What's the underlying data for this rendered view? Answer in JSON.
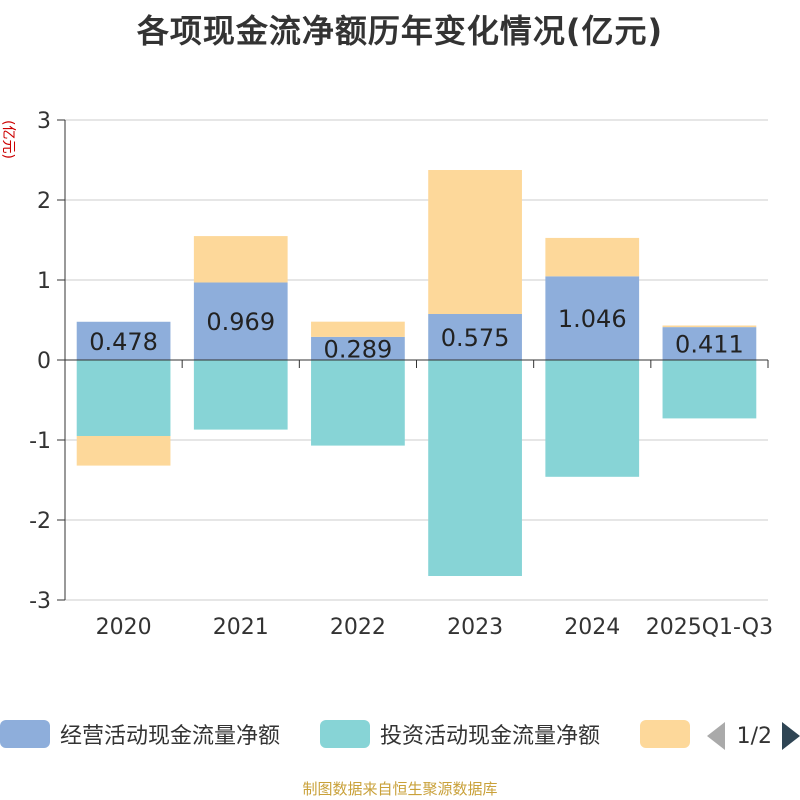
{
  "chart_data": {
    "type": "bar",
    "stacked": true,
    "title": "各项现金流净额历年变化情况(亿元)",
    "ylabel": "(亿元)",
    "xlabel": "",
    "categories": [
      "2020",
      "2021",
      "2022",
      "2023",
      "2024",
      "2025Q1-Q3"
    ],
    "ylim": [
      -3,
      3
    ],
    "yticks": [
      3,
      2,
      1,
      0,
      -1,
      -2,
      -3
    ],
    "grid": true,
    "series": [
      {
        "name": "经营活动现金流量净额",
        "color": "#8eaedb",
        "values": [
          0.478,
          0.969,
          0.289,
          0.575,
          1.046,
          0.411
        ],
        "labels": [
          "0.478",
          "0.969",
          "0.289",
          "0.575",
          "1.046",
          "0.411"
        ]
      },
      {
        "name": "投资活动现金流量净额",
        "color": "#87d4d6",
        "values": [
          -0.95,
          -0.87,
          -1.07,
          -2.7,
          -1.46,
          -0.73
        ]
      },
      {
        "name": "",
        "color": "#fdd89a",
        "values": [
          -0.37,
          0.58,
          0.19,
          1.8,
          0.48,
          0.02
        ]
      }
    ],
    "legend": {
      "position": "bottom",
      "page": "1/2"
    }
  },
  "source": "制图数据来自恒生聚源数据库"
}
